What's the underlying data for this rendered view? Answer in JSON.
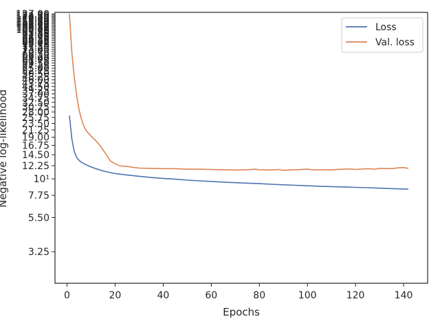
{
  "chart_data": {
    "type": "line",
    "title": "",
    "xlabel": "Epochs",
    "ylabel": "Negative log-likelihood",
    "yscale": "log",
    "xlim": [
      -5,
      150
    ],
    "ylim": [
      2.0,
      130.0
    ],
    "xticks": [
      0,
      20,
      40,
      60,
      80,
      100,
      120,
      140
    ],
    "xtick_labels": [
      "0",
      "20",
      "40",
      "60",
      "80",
      "100",
      "120",
      "140"
    ],
    "yticks": [
      3.25,
      5.5,
      7.75,
      10,
      12.25,
      14.5,
      16.75,
      19.0,
      21.25,
      23.5,
      25.75,
      28.0,
      30.25,
      32.5,
      34.75,
      37.0,
      39.25,
      41.5,
      43.75,
      46.0,
      48.25,
      50.5,
      52.75,
      55.0,
      57.25,
      59.5,
      61.75,
      64.0,
      66.25,
      68.5,
      70.75,
      73.0,
      75.25,
      77.5,
      79.75,
      82.0,
      84.25,
      86.5,
      88.75,
      91.0,
      93.25,
      95.5,
      97.75,
      100.0,
      102.25,
      104.5,
      106.75,
      109.0,
      111.25,
      113.5,
      115.75,
      118.0,
      120.25,
      122.5,
      124.75,
      127.0
    ],
    "ytick_labels": [
      "3.25",
      "5.50",
      "7.75",
      "10¹",
      "12.25",
      "14.50",
      "16.75",
      "19.00",
      "21.25",
      "23.50",
      "25.75",
      "28.00",
      "30.25",
      "32.50",
      "34.75",
      "37.00",
      "39.25",
      "41.50",
      "43.75",
      "46.00",
      "48.25",
      "50.50",
      "52.75",
      "55.00",
      "57.25",
      "59.50",
      "61.75",
      "64.00",
      "66.25",
      "68.50",
      "70.75",
      "73.00",
      "75.25",
      "77.50",
      "79.75",
      "82.00",
      "84.25",
      "86.50",
      "88.75",
      "91.00",
      "93.25",
      "95.50",
      "97.75",
      "100.00",
      "102.25",
      "104.50",
      "106.75",
      "109.00",
      "111.25",
      "113.50",
      "115.75",
      "118.00",
      "120.25",
      "122.50",
      "124.75",
      "127.00"
    ],
    "grid": false,
    "legend_position": "top-right",
    "series": [
      {
        "name": "Loss",
        "color": "#4c72b0",
        "x": [
          1,
          2,
          3,
          4,
          5,
          6,
          8,
          10,
          12,
          15,
          18,
          20,
          25,
          30,
          35,
          40,
          45,
          50,
          55,
          60,
          65,
          70,
          75,
          80,
          85,
          90,
          95,
          100,
          105,
          110,
          115,
          120,
          125,
          130,
          135,
          140,
          142
        ],
        "y": [
          26.5,
          18.5,
          15.2,
          13.9,
          13.3,
          12.9,
          12.4,
          12.0,
          11.7,
          11.3,
          11.0,
          10.85,
          10.6,
          10.4,
          10.2,
          10.05,
          9.95,
          9.8,
          9.7,
          9.6,
          9.5,
          9.42,
          9.35,
          9.28,
          9.2,
          9.12,
          9.05,
          8.98,
          8.92,
          8.87,
          8.82,
          8.77,
          8.72,
          8.66,
          8.6,
          8.55,
          8.53
        ]
      },
      {
        "name": "Val. loss",
        "color": "#dd8452",
        "x": [
          1,
          2,
          3,
          4,
          5,
          6,
          7,
          8,
          10,
          12,
          14,
          16,
          18,
          20,
          22,
          25,
          28,
          30,
          35,
          40,
          45,
          50,
          55,
          60,
          65,
          70,
          75,
          78,
          80,
          85,
          88,
          90,
          95,
          100,
          103,
          105,
          110,
          115,
          118,
          120,
          125,
          128,
          130,
          135,
          138,
          140,
          142
        ],
        "y": [
          127.0,
          70.0,
          48.0,
          36.0,
          29.0,
          25.0,
          22.5,
          21.0,
          19.3,
          18.0,
          16.5,
          14.8,
          13.2,
          12.6,
          12.2,
          12.1,
          11.9,
          11.8,
          11.75,
          11.7,
          11.7,
          11.6,
          11.6,
          11.55,
          11.5,
          11.45,
          11.5,
          11.6,
          11.5,
          11.45,
          11.55,
          11.4,
          11.5,
          11.6,
          11.45,
          11.5,
          11.5,
          11.6,
          11.65,
          11.55,
          11.7,
          11.6,
          11.75,
          11.7,
          11.85,
          11.9,
          11.75
        ]
      }
    ]
  }
}
